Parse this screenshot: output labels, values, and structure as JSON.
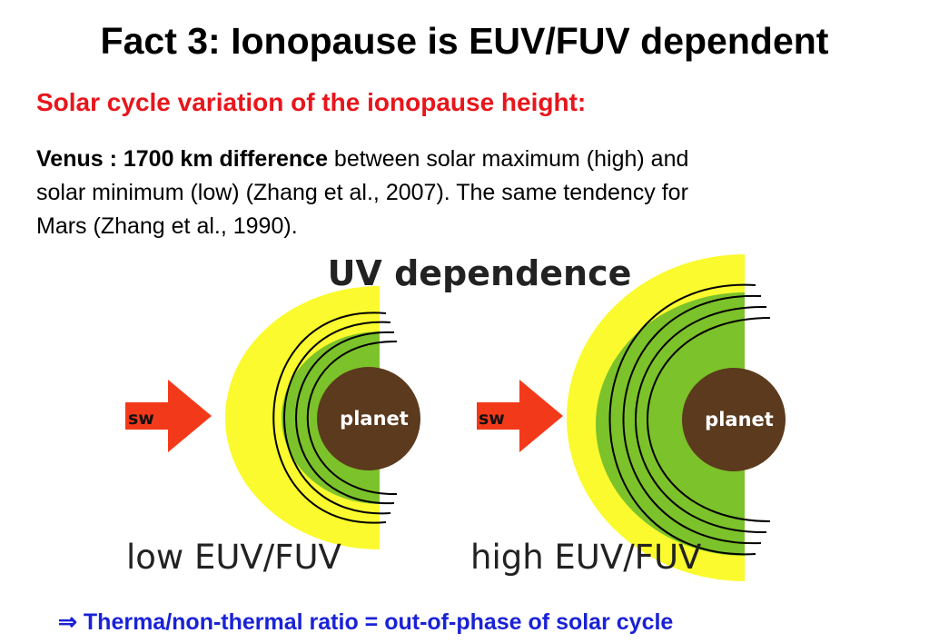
{
  "slide": {
    "title": "Fact 3: Ionopause is EUV/FUV dependent",
    "subtitle": "Solar cycle variation of the ionopause height:",
    "paragraph": {
      "bold": "Venus : 1700 km difference",
      "line1_rest": " between solar maximum (high) and",
      "line2": "solar minimum (low) (Zhang et al., 2007).  The same tendency for",
      "line3": "Mars (Zhang et al., 1990)."
    },
    "conclusion": {
      "arrow_symbol": "⇒",
      "text": " Therma/non-thermal ratio = out-of-phase of solar cycle"
    }
  },
  "diagram": {
    "heading": "UV dependence",
    "panels": [
      {
        "caption": "low EUV/FUV",
        "arrow_label": "sw",
        "planet_label": "planet"
      },
      {
        "caption": "high EUV/FUV",
        "arrow_label": "sw",
        "planet_label": "planet"
      }
    ]
  },
  "colors": {
    "title": "#000000",
    "subtitle": "#e8151b",
    "conclusion": "#1a22d6",
    "yellow_region": "#fafa2e",
    "green_region": "#7cc22a",
    "planet": "#5b3a1d",
    "arrow": "#f23a1a"
  }
}
